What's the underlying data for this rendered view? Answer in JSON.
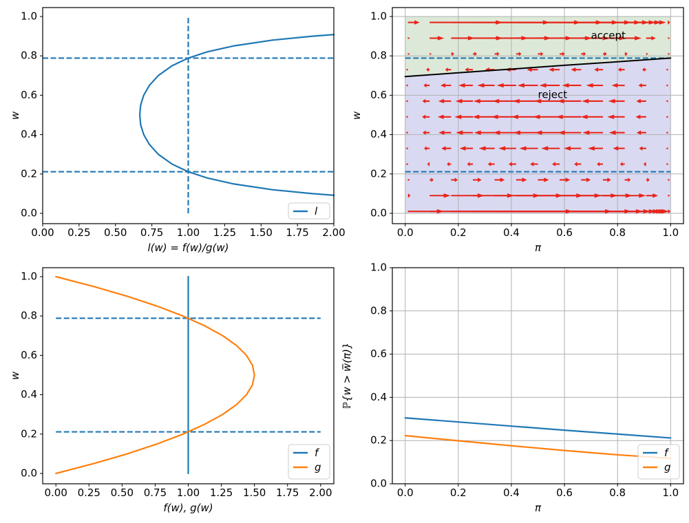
{
  "colors": {
    "blue": "#1f77b4",
    "orange": "#ff7f0e",
    "red": "#e8251a",
    "black": "#000000",
    "grid": "#b0b0b0",
    "accept_fill": "#dde9d8",
    "reject_fill": "#dad9f2",
    "legend_edge": "#cccccc",
    "background": "#ffffff"
  },
  "chart_data": [
    {
      "id": "top-left",
      "type": "line",
      "title": "",
      "xlabel": "l(w) = f(w)/g(w)",
      "ylabel": "w",
      "xlim": [
        0,
        2
      ],
      "ylim": [
        -0.05,
        1.05
      ],
      "grid": false,
      "xticks": {
        "values": [
          0,
          0.25,
          0.5,
          0.75,
          1.0,
          1.25,
          1.5,
          1.75,
          2.0
        ],
        "labels": [
          "0.00",
          "0.25",
          "0.50",
          "0.75",
          "1.00",
          "1.25",
          "1.50",
          "1.75",
          "2.00"
        ]
      },
      "yticks": {
        "values": [
          0,
          0.2,
          0.4,
          0.6,
          0.8,
          1.0
        ],
        "labels": [
          "0.0",
          "0.2",
          "0.4",
          "0.6",
          "0.8",
          "1.0"
        ]
      },
      "series": [
        {
          "name": "l",
          "color_key": "blue",
          "points": [
            [
              2.0,
              0.0918
            ],
            [
              1.852,
              0.1
            ],
            [
              1.578,
              0.12
            ],
            [
              1.307,
              0.15
            ],
            [
              1.129,
              0.18
            ],
            [
              1.0,
              0.2113
            ],
            [
              0.889,
              0.25
            ],
            [
              0.794,
              0.3
            ],
            [
              0.733,
              0.35
            ],
            [
              0.694,
              0.4
            ],
            [
              0.673,
              0.45
            ],
            [
              0.667,
              0.5
            ],
            [
              0.673,
              0.55
            ],
            [
              0.694,
              0.6
            ],
            [
              0.733,
              0.65
            ],
            [
              0.794,
              0.7
            ],
            [
              0.889,
              0.75
            ],
            [
              1.0,
              0.7887
            ],
            [
              1.129,
              0.82
            ],
            [
              1.307,
              0.85
            ],
            [
              1.578,
              0.88
            ],
            [
              1.852,
              0.9
            ],
            [
              2.0,
              0.9082
            ]
          ]
        }
      ],
      "guides": [
        {
          "type": "h",
          "at": 0.7887,
          "from": 0,
          "to": 2,
          "color_key": "blue"
        },
        {
          "type": "h",
          "at": 0.2113,
          "from": 0,
          "to": 2,
          "color_key": "blue"
        },
        {
          "type": "v",
          "at": 1.0,
          "from": 0,
          "to": 1,
          "color_key": "blue"
        }
      ],
      "legend": {
        "loc": "lower-right",
        "entries": [
          {
            "label": "l",
            "color_key": "blue"
          }
        ]
      }
    },
    {
      "id": "top-right",
      "type": "quiver-phase",
      "xlabel": "π",
      "ylabel": "w",
      "xlim": [
        -0.05,
        1.05
      ],
      "ylim": [
        -0.05,
        1.05
      ],
      "grid": true,
      "xticks": {
        "values": [
          0,
          0.2,
          0.4,
          0.6,
          0.8,
          1.0
        ],
        "labels": [
          "0.0",
          "0.2",
          "0.4",
          "0.6",
          "0.8",
          "1.0"
        ]
      },
      "yticks": {
        "values": [
          0,
          0.2,
          0.4,
          0.6,
          0.8,
          1.0
        ],
        "labels": [
          "0.0",
          "0.2",
          "0.4",
          "0.6",
          "0.8",
          "1.0"
        ]
      },
      "regions": [
        {
          "name": "accept",
          "fill_key": "accept_fill"
        },
        {
          "name": "reject",
          "fill_key": "reject_fill"
        }
      ],
      "boundary": {
        "name": "w_bar",
        "color_key": "black",
        "points": [
          [
            0,
            0.695
          ],
          [
            0.2,
            0.714
          ],
          [
            0.4,
            0.733
          ],
          [
            0.6,
            0.752
          ],
          [
            0.8,
            0.77
          ],
          [
            1.0,
            0.7887
          ]
        ]
      },
      "guides": [
        {
          "type": "h",
          "at": 0.7887,
          "from": 0,
          "to": 1,
          "color_key": "blue"
        },
        {
          "type": "h",
          "at": 0.2113,
          "from": 0,
          "to": 1,
          "color_key": "blue"
        }
      ],
      "annotations": [
        {
          "text": "accept",
          "x": 0.7,
          "y": 0.9
        },
        {
          "text": "reject",
          "x": 0.5,
          "y": 0.6
        }
      ],
      "quiver": {
        "color_key": "red",
        "pi_values": [
          0.01,
          0.092,
          0.173,
          0.255,
          0.337,
          0.418,
          0.5,
          0.582,
          0.663,
          0.745,
          0.827,
          0.908,
          0.99
        ],
        "w_values": [
          0.01,
          0.09,
          0.17,
          0.25,
          0.33,
          0.41,
          0.49,
          0.57,
          0.65,
          0.73,
          0.81,
          0.89,
          0.97
        ],
        "l_values": [
          16.84,
          2.035,
          1.181,
          0.889,
          0.754,
          0.689,
          0.667,
          0.68,
          0.733,
          0.846,
          1.083,
          1.702,
          5.727
        ],
        "update_rule": "dpi = pi*l(w)/(pi*l(w)+1-pi) - pi"
      }
    },
    {
      "id": "bottom-left",
      "type": "line",
      "xlabel": "f(w), g(w)",
      "ylabel": "w",
      "xlim": [
        -0.1,
        2.1
      ],
      "ylim": [
        -0.05,
        1.05
      ],
      "grid": false,
      "xticks": {
        "values": [
          0,
          0.25,
          0.5,
          0.75,
          1.0,
          1.25,
          1.5,
          1.75,
          2.0
        ],
        "labels": [
          "0.00",
          "0.25",
          "0.50",
          "0.75",
          "1.00",
          "1.25",
          "1.50",
          "1.75",
          "2.00"
        ]
      },
      "yticks": {
        "values": [
          0,
          0.2,
          0.4,
          0.6,
          0.8,
          1.0
        ],
        "labels": [
          "0.0",
          "0.2",
          "0.4",
          "0.6",
          "0.8",
          "1.0"
        ]
      },
      "series": [
        {
          "name": "f",
          "color_key": "blue",
          "points": [
            [
              1,
              0
            ],
            [
              1,
              1
            ]
          ]
        },
        {
          "name": "g",
          "color_key": "orange",
          "points": [
            [
              0,
              0
            ],
            [
              0.285,
              0.05
            ],
            [
              0.54,
              0.1
            ],
            [
              0.765,
              0.15
            ],
            [
              0.96,
              0.2
            ],
            [
              1.125,
              0.25
            ],
            [
              1.26,
              0.3
            ],
            [
              1.365,
              0.35
            ],
            [
              1.44,
              0.4
            ],
            [
              1.485,
              0.45
            ],
            [
              1.5,
              0.5
            ],
            [
              1.485,
              0.55
            ],
            [
              1.44,
              0.6
            ],
            [
              1.365,
              0.65
            ],
            [
              1.26,
              0.7
            ],
            [
              1.125,
              0.75
            ],
            [
              0.96,
              0.8
            ],
            [
              0.765,
              0.85
            ],
            [
              0.54,
              0.9
            ],
            [
              0.285,
              0.95
            ],
            [
              0,
              1.0
            ]
          ]
        }
      ],
      "guides": [
        {
          "type": "h",
          "at": 0.7887,
          "from": 0,
          "to": 2,
          "color_key": "blue"
        },
        {
          "type": "h",
          "at": 0.2113,
          "from": 0,
          "to": 2,
          "color_key": "blue"
        }
      ],
      "legend": {
        "loc": "lower-right",
        "entries": [
          {
            "label": "f",
            "color_key": "blue"
          },
          {
            "label": "g",
            "color_key": "orange"
          }
        ]
      }
    },
    {
      "id": "bottom-right",
      "type": "line",
      "xlabel": "π",
      "ylabel": "ℙ{w > w̅(π)}",
      "xlim": [
        -0.05,
        1.05
      ],
      "ylim": [
        0,
        1
      ],
      "grid": true,
      "xticks": {
        "values": [
          0,
          0.2,
          0.4,
          0.6,
          0.8,
          1.0
        ],
        "labels": [
          "0.0",
          "0.2",
          "0.4",
          "0.6",
          "0.8",
          "1.0"
        ]
      },
      "yticks": {
        "values": [
          0,
          0.2,
          0.4,
          0.6,
          0.8,
          1.0
        ],
        "labels": [
          "0.0",
          "0.2",
          "0.4",
          "0.6",
          "0.8",
          "1.0"
        ]
      },
      "series": [
        {
          "name": "f",
          "color_key": "blue",
          "points": [
            [
              0,
              0.305
            ],
            [
              0.2,
              0.286
            ],
            [
              0.4,
              0.267
            ],
            [
              0.6,
              0.248
            ],
            [
              0.8,
              0.23
            ],
            [
              1.0,
              0.212
            ]
          ]
        },
        {
          "name": "g",
          "color_key": "orange",
          "points": [
            [
              0,
              0.223
            ],
            [
              0.2,
              0.199
            ],
            [
              0.4,
              0.176
            ],
            [
              0.6,
              0.154
            ],
            [
              0.8,
              0.134
            ],
            [
              1.0,
              0.118
            ]
          ]
        }
      ],
      "guides": [],
      "legend": {
        "loc": "lower-right",
        "entries": [
          {
            "label": "f",
            "color_key": "blue"
          },
          {
            "label": "g",
            "color_key": "orange"
          }
        ]
      }
    }
  ]
}
